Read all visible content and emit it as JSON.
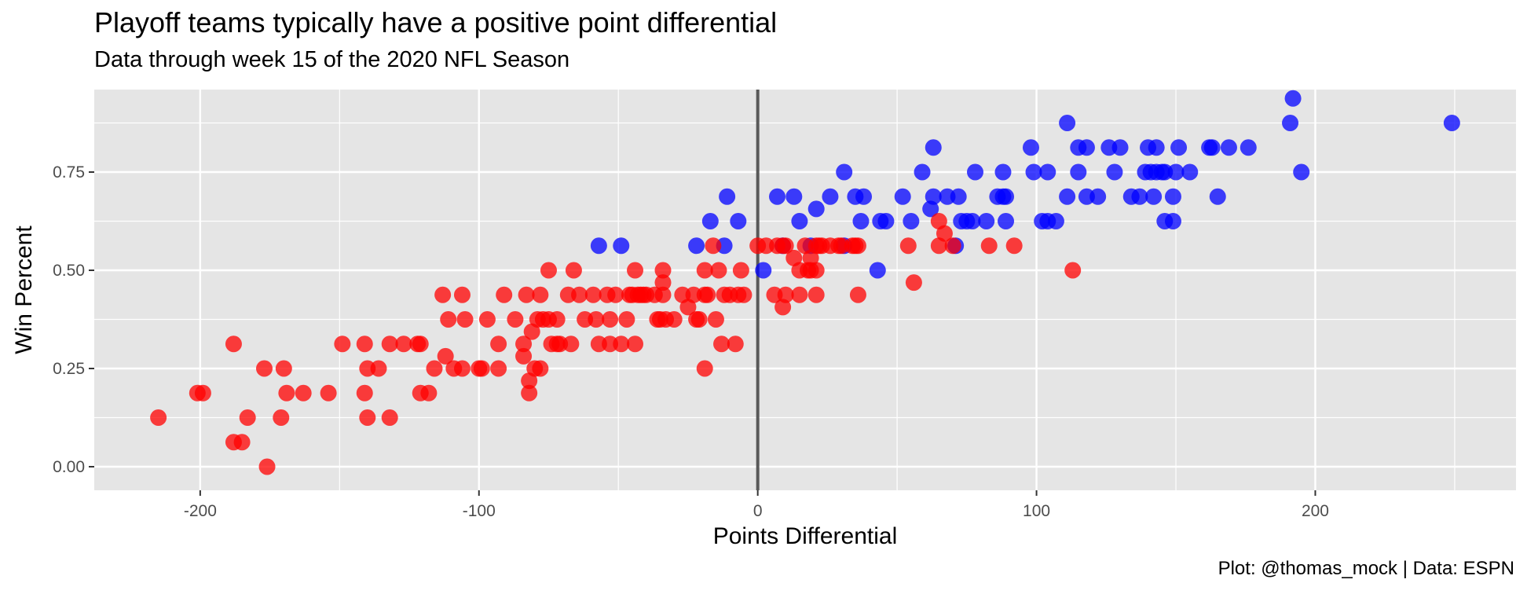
{
  "chart_data": {
    "type": "scatter",
    "title": "Playoff teams typically have a positive point differential",
    "subtitle": "Data through week 15 of the 2020 NFL Season",
    "caption": "Plot: @thomas_mock | Data: ESPN",
    "xlabel": "Points Differential",
    "ylabel": "Win Percent",
    "xlim": [
      -238,
      272
    ],
    "ylim": [
      -0.06,
      0.96
    ],
    "x_ticks": [
      -200,
      -100,
      0,
      100,
      200
    ],
    "x_tick_labels": [
      "-200",
      "-100",
      "0",
      "100",
      "200"
    ],
    "y_ticks": [
      0.0,
      0.25,
      0.5,
      0.75
    ],
    "y_tick_labels": [
      "0.00",
      "0.25",
      "0.50",
      "0.75"
    ],
    "grid": true,
    "reference_line_x": 0,
    "colors": {
      "panel": "#e5e5e5",
      "grid": "#ffffff",
      "reference": "#595959",
      "series_a": "#0000ff",
      "series_b": "#ff0000"
    },
    "series": [
      {
        "color": "#0000ff",
        "points": [
          [
            -57,
            0.5625
          ],
          [
            -49,
            0.5625
          ],
          [
            -22,
            0.5625
          ],
          [
            -12,
            0.5625
          ],
          [
            -11,
            0.6875
          ],
          [
            -17,
            0.625
          ],
          [
            -7,
            0.625
          ],
          [
            2,
            0.5
          ],
          [
            7,
            0.6875
          ],
          [
            13,
            0.6875
          ],
          [
            9,
            0.5625
          ],
          [
            15,
            0.625
          ],
          [
            19,
            0.5625
          ],
          [
            21,
            0.65625
          ],
          [
            26,
            0.6875
          ],
          [
            31,
            0.75
          ],
          [
            31,
            0.5625
          ],
          [
            35,
            0.6875
          ],
          [
            38,
            0.6875
          ],
          [
            37,
            0.625
          ],
          [
            43,
            0.5
          ],
          [
            44,
            0.625
          ],
          [
            46,
            0.625
          ],
          [
            52,
            0.6875
          ],
          [
            55,
            0.625
          ],
          [
            59,
            0.75
          ],
          [
            62,
            0.65625
          ],
          [
            63,
            0.8125
          ],
          [
            63,
            0.6875
          ],
          [
            68,
            0.6875
          ],
          [
            71,
            0.5625
          ],
          [
            72,
            0.6875
          ],
          [
            73,
            0.625
          ],
          [
            75,
            0.625
          ],
          [
            77,
            0.625
          ],
          [
            78,
            0.75
          ],
          [
            82,
            0.625
          ],
          [
            86,
            0.6875
          ],
          [
            88,
            0.75
          ],
          [
            88,
            0.6875
          ],
          [
            89,
            0.6875
          ],
          [
            89,
            0.625
          ],
          [
            98,
            0.8125
          ],
          [
            99,
            0.75
          ],
          [
            102,
            0.625
          ],
          [
            104,
            0.625
          ],
          [
            104,
            0.75
          ],
          [
            107,
            0.625
          ],
          [
            111,
            0.875
          ],
          [
            111,
            0.6875
          ],
          [
            115,
            0.8125
          ],
          [
            115,
            0.75
          ],
          [
            118,
            0.8125
          ],
          [
            118,
            0.6875
          ],
          [
            122,
            0.6875
          ],
          [
            126,
            0.8125
          ],
          [
            128,
            0.75
          ],
          [
            130,
            0.8125
          ],
          [
            134,
            0.6875
          ],
          [
            137,
            0.6875
          ],
          [
            139,
            0.75
          ],
          [
            140,
            0.8125
          ],
          [
            141,
            0.75
          ],
          [
            142,
            0.6875
          ],
          [
            143,
            0.8125
          ],
          [
            143,
            0.75
          ],
          [
            145,
            0.75
          ],
          [
            146,
            0.75
          ],
          [
            146,
            0.625
          ],
          [
            149,
            0.625
          ],
          [
            149,
            0.6875
          ],
          [
            150,
            0.75
          ],
          [
            151,
            0.8125
          ],
          [
            155,
            0.75
          ],
          [
            162,
            0.8125
          ],
          [
            163,
            0.8125
          ],
          [
            165,
            0.6875
          ],
          [
            169,
            0.8125
          ],
          [
            176,
            0.8125
          ],
          [
            191,
            0.875
          ],
          [
            192,
            0.9375
          ],
          [
            195,
            0.75
          ],
          [
            249,
            0.875
          ]
        ]
      },
      {
        "color": "#ff0000",
        "points": [
          [
            -215,
            0.125
          ],
          [
            -201,
            0.1875
          ],
          [
            -199,
            0.1875
          ],
          [
            -188,
            0.3125
          ],
          [
            -188,
            0.0625
          ],
          [
            -185,
            0.0625
          ],
          [
            -183,
            0.125
          ],
          [
            -177,
            0.25
          ],
          [
            -176,
            0.0
          ],
          [
            -171,
            0.125
          ],
          [
            -170,
            0.25
          ],
          [
            -169,
            0.1875
          ],
          [
            -163,
            0.1875
          ],
          [
            -154,
            0.1875
          ],
          [
            -149,
            0.3125
          ],
          [
            -141,
            0.3125
          ],
          [
            -141,
            0.1875
          ],
          [
            -140,
            0.25
          ],
          [
            -140,
            0.125
          ],
          [
            -136,
            0.25
          ],
          [
            -132,
            0.3125
          ],
          [
            -132,
            0.125
          ],
          [
            -127,
            0.3125
          ],
          [
            -122,
            0.3125
          ],
          [
            -121,
            0.3125
          ],
          [
            -121,
            0.1875
          ],
          [
            -118,
            0.1875
          ],
          [
            -116,
            0.25
          ],
          [
            -113,
            0.4375
          ],
          [
            -112,
            0.28125
          ],
          [
            -111,
            0.375
          ],
          [
            -109,
            0.25
          ],
          [
            -106,
            0.25
          ],
          [
            -106,
            0.4375
          ],
          [
            -105,
            0.375
          ],
          [
            -100,
            0.25
          ],
          [
            -99,
            0.25
          ],
          [
            -97,
            0.375
          ],
          [
            -93,
            0.3125
          ],
          [
            -93,
            0.25
          ],
          [
            -91,
            0.4375
          ],
          [
            -87,
            0.375
          ],
          [
            -84,
            0.3125
          ],
          [
            -84,
            0.28125
          ],
          [
            -83,
            0.4375
          ],
          [
            -82,
            0.1875
          ],
          [
            -82,
            0.21875
          ],
          [
            -81,
            0.34375
          ],
          [
            -80,
            0.25
          ],
          [
            -79,
            0.375
          ],
          [
            -78,
            0.25
          ],
          [
            -78,
            0.4375
          ],
          [
            -77,
            0.375
          ],
          [
            -75,
            0.375
          ],
          [
            -75,
            0.5
          ],
          [
            -74,
            0.3125
          ],
          [
            -72,
            0.3125
          ],
          [
            -72,
            0.375
          ],
          [
            -71,
            0.3125
          ],
          [
            -68,
            0.4375
          ],
          [
            -67,
            0.3125
          ],
          [
            -66,
            0.5
          ],
          [
            -64,
            0.4375
          ],
          [
            -62,
            0.375
          ],
          [
            -59,
            0.4375
          ],
          [
            -58,
            0.375
          ],
          [
            -57,
            0.3125
          ],
          [
            -54,
            0.4375
          ],
          [
            -53,
            0.3125
          ],
          [
            -53,
            0.375
          ],
          [
            -51,
            0.4375
          ],
          [
            -49,
            0.3125
          ],
          [
            -47,
            0.375
          ],
          [
            -46,
            0.4375
          ],
          [
            -45,
            0.4375
          ],
          [
            -44,
            0.5
          ],
          [
            -44,
            0.3125
          ],
          [
            -43,
            0.4375
          ],
          [
            -42,
            0.4375
          ],
          [
            -41,
            0.4375
          ],
          [
            -40,
            0.4375
          ],
          [
            -37,
            0.4375
          ],
          [
            -36,
            0.375
          ],
          [
            -35,
            0.375
          ],
          [
            -34,
            0.46875
          ],
          [
            -34,
            0.5
          ],
          [
            -34,
            0.4375
          ],
          [
            -33,
            0.375
          ],
          [
            -30,
            0.375
          ],
          [
            -27,
            0.4375
          ],
          [
            -25,
            0.40625
          ],
          [
            -23,
            0.4375
          ],
          [
            -22,
            0.375
          ],
          [
            -21,
            0.375
          ],
          [
            -19,
            0.4375
          ],
          [
            -19,
            0.5
          ],
          [
            -19,
            0.25
          ],
          [
            -18,
            0.4375
          ],
          [
            -16,
            0.5625
          ],
          [
            -15,
            0.375
          ],
          [
            -14,
            0.5
          ],
          [
            -13,
            0.3125
          ],
          [
            -12,
            0.4375
          ],
          [
            -10,
            0.4375
          ],
          [
            -8,
            0.3125
          ],
          [
            -7,
            0.4375
          ],
          [
            -6,
            0.5
          ],
          [
            -5,
            0.4375
          ],
          [
            0,
            0.5625
          ],
          [
            3,
            0.5625
          ],
          [
            6,
            0.4375
          ],
          [
            7,
            0.5625
          ],
          [
            9,
            0.5625
          ],
          [
            9,
            0.40625
          ],
          [
            10,
            0.4375
          ],
          [
            10,
            0.5625
          ],
          [
            13,
            0.53125
          ],
          [
            15,
            0.4375
          ],
          [
            15,
            0.5
          ],
          [
            17,
            0.5625
          ],
          [
            18,
            0.5
          ],
          [
            19,
            0.53125
          ],
          [
            19,
            0.5
          ],
          [
            21,
            0.5
          ],
          [
            21,
            0.5625
          ],
          [
            21,
            0.4375
          ],
          [
            22,
            0.5625
          ],
          [
            23,
            0.5625
          ],
          [
            26,
            0.5625
          ],
          [
            29,
            0.5625
          ],
          [
            30,
            0.5625
          ],
          [
            34,
            0.5625
          ],
          [
            35,
            0.5625
          ],
          [
            36,
            0.4375
          ],
          [
            36,
            0.5625
          ],
          [
            54,
            0.5625
          ],
          [
            56,
            0.46875
          ],
          [
            65,
            0.5625
          ],
          [
            65,
            0.625
          ],
          [
            67,
            0.59375
          ],
          [
            70,
            0.5625
          ],
          [
            83,
            0.5625
          ],
          [
            92,
            0.5625
          ],
          [
            113,
            0.5
          ]
        ]
      }
    ]
  }
}
